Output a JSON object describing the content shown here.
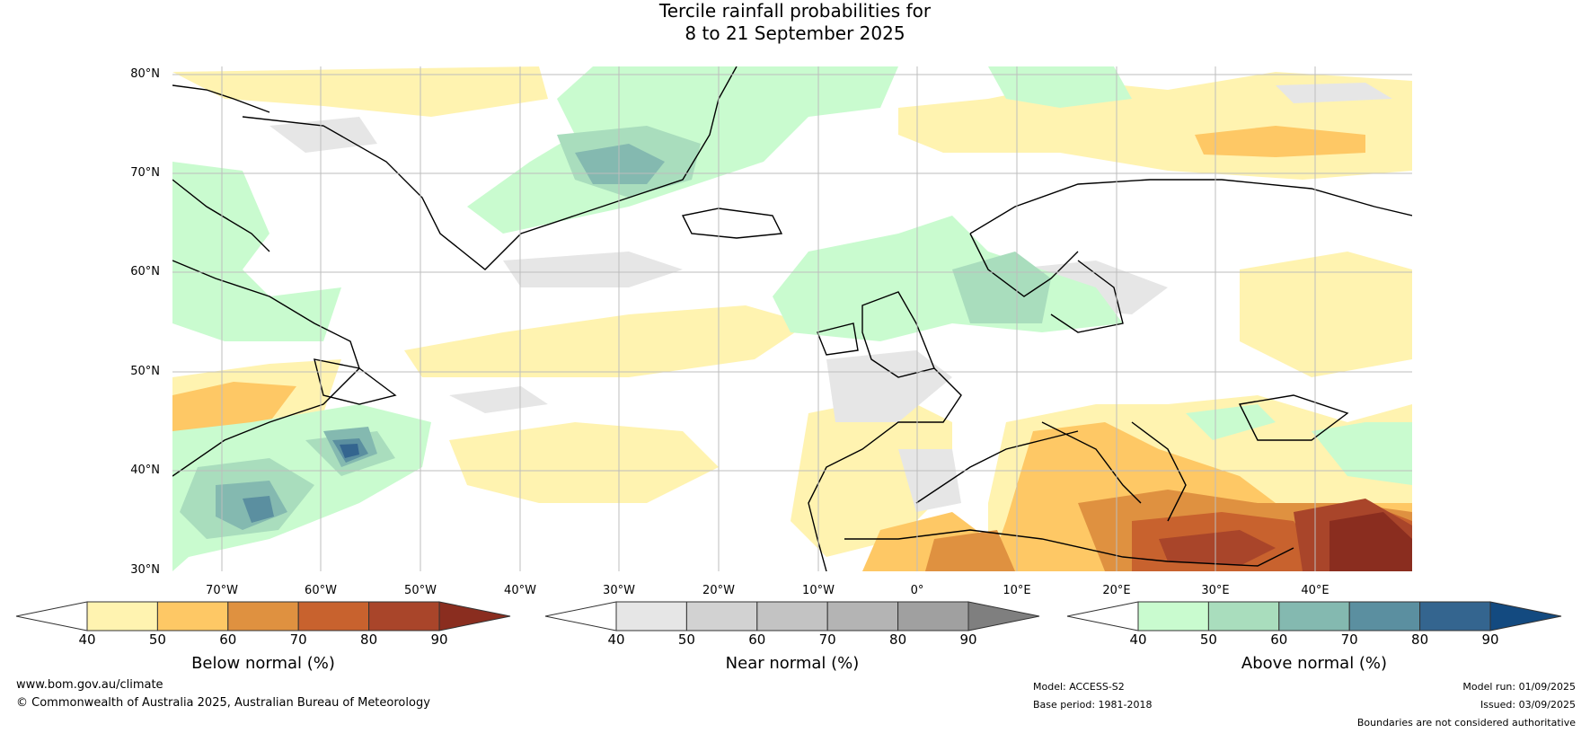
{
  "title": {
    "line1": "Tercile rainfall probabilities for",
    "line2": "8 to 21 September 2025"
  },
  "map": {
    "lat_labels": [
      "80°N",
      "70°N",
      "60°N",
      "50°N",
      "40°N",
      "30°N"
    ],
    "lon_labels": [
      "70°W",
      "60°W",
      "50°W",
      "40°W",
      "30°W",
      "20°W",
      "10°W",
      "0°",
      "10°E",
      "20°E",
      "30°E",
      "40°E"
    ]
  },
  "colorbars": [
    {
      "title": "Below normal (%)",
      "ticks": [
        "40",
        "50",
        "60",
        "70",
        "80",
        "90"
      ],
      "colors": [
        "#fff3b0",
        "#fec865",
        "#df9140",
        "#c8622e",
        "#a9452a",
        "#8a2d1f"
      ]
    },
    {
      "title": "Near normal (%)",
      "ticks": [
        "40",
        "50",
        "60",
        "70",
        "80",
        "90"
      ],
      "colors": [
        "#e6e6e6",
        "#d2d2d2",
        "#c3c3c3",
        "#b4b4b4",
        "#a0a0a0",
        "#7f7f7f"
      ]
    },
    {
      "title": "Above normal (%)",
      "ticks": [
        "40",
        "50",
        "60",
        "70",
        "80",
        "90"
      ],
      "colors": [
        "#c9fbcf",
        "#a9ddbd",
        "#84b9b0",
        "#5b8fa0",
        "#34658f",
        "#134a80"
      ]
    }
  ],
  "footer": {
    "website": "www.bom.gov.au/climate",
    "copyright": "© Commonwealth of Australia 2025, Australian Bureau of Meteorology",
    "model": "Model: ACCESS-S2",
    "base_period": "Base period: 1981-2018",
    "model_run": "Model run: 01/09/2025",
    "issued": "Issued: 03/09/2025",
    "disclaimer": "Boundaries are not considered authoritative"
  }
}
